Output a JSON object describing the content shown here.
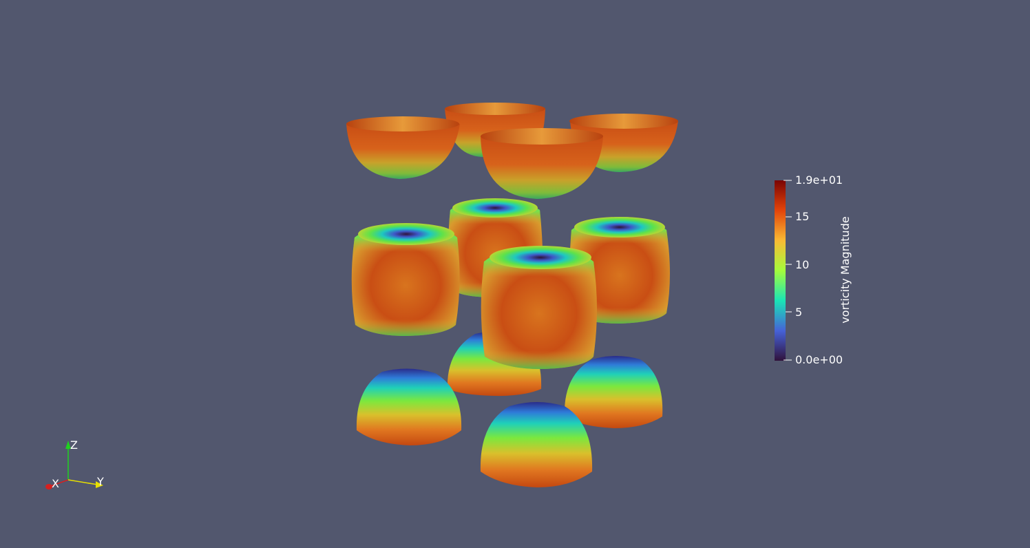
{
  "viewport": {
    "background": "#52576e"
  },
  "colorbar": {
    "title": "vorticity Magnitude",
    "ticks": [
      "1.9e+01",
      "15",
      "10",
      "5",
      "0.0e+00"
    ],
    "range": [
      0,
      19
    ],
    "colormap": "turbo",
    "colors": [
      "#30123b",
      "#4662d7",
      "#1ae4b6",
      "#a4fc3c",
      "#fabb34",
      "#e3440a",
      "#7a0403"
    ]
  },
  "axes_widget": {
    "x_label": "X",
    "y_label": "Y",
    "z_label": "Z",
    "x_color": "#d62020",
    "y_color": "#e8e000",
    "z_color": "#20d020"
  },
  "scene": {
    "layers": [
      {
        "name": "top-half-cups",
        "count": 4,
        "shape": "cup"
      },
      {
        "name": "middle-full-cubes",
        "count": 4,
        "shape": "cube"
      },
      {
        "name": "bottom-half-domes",
        "count": 4,
        "shape": "dome"
      }
    ]
  }
}
